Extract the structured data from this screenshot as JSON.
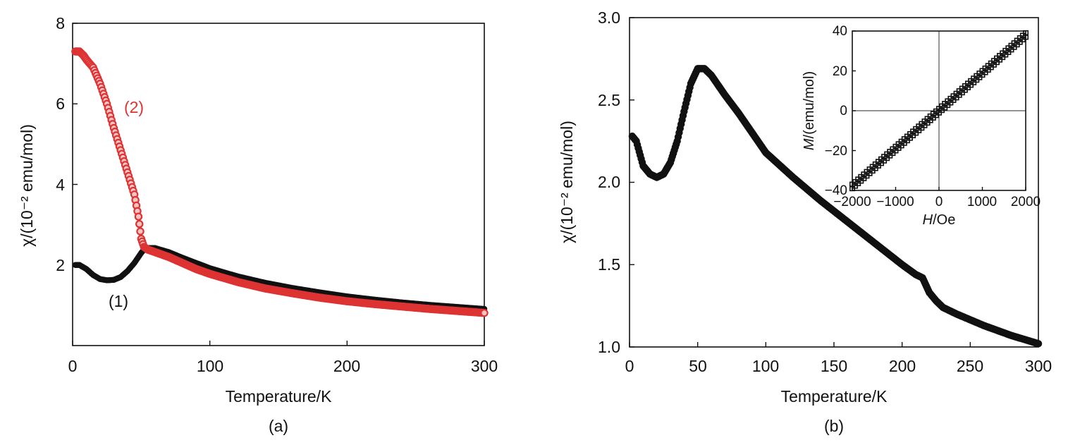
{
  "chart_data": [
    {
      "panel": "(a)",
      "type": "scatter",
      "xlabel": "Temperature/K",
      "ylabel": "χ/(10⁻² emu/mol)",
      "xlim": [
        0,
        300
      ],
      "ylim": [
        0,
        8
      ],
      "xticks": [
        0,
        100,
        200,
        300
      ],
      "yticks": [
        2,
        4,
        6,
        8
      ],
      "grid": false,
      "series": [
        {
          "name": "(1)",
          "color": "#111111",
          "marker": "filled-circle",
          "x": [
            2,
            5,
            10,
            15,
            20,
            25,
            30,
            35,
            40,
            45,
            50,
            52,
            55,
            60,
            70,
            80,
            90,
            100,
            120,
            140,
            160,
            180,
            200,
            220,
            240,
            260,
            280,
            300
          ],
          "y": [
            2.0,
            2.0,
            1.9,
            1.75,
            1.65,
            1.62,
            1.63,
            1.7,
            1.85,
            2.05,
            2.3,
            2.38,
            2.42,
            2.42,
            2.32,
            2.18,
            2.05,
            1.92,
            1.72,
            1.56,
            1.43,
            1.32,
            1.22,
            1.14,
            1.07,
            1.01,
            0.96,
            0.91
          ]
        },
        {
          "name": "(2)",
          "color": "#dd3333",
          "marker": "open-circle",
          "x": [
            2,
            5,
            8,
            10,
            15,
            20,
            25,
            30,
            35,
            40,
            45,
            48,
            50,
            52,
            55,
            60,
            70,
            80,
            90,
            100,
            120,
            140,
            160,
            180,
            200,
            220,
            240,
            260,
            280,
            300
          ],
          "y": [
            7.3,
            7.3,
            7.2,
            7.1,
            6.9,
            6.5,
            6.0,
            5.4,
            4.85,
            4.3,
            3.75,
            3.2,
            2.65,
            2.45,
            2.38,
            2.32,
            2.2,
            2.05,
            1.9,
            1.78,
            1.58,
            1.42,
            1.3,
            1.19,
            1.1,
            1.03,
            0.97,
            0.91,
            0.86,
            0.81
          ]
        }
      ],
      "annotations": [
        {
          "text": "(1)",
          "x": 33,
          "y": 1.05,
          "color": "#111111"
        },
        {
          "text": "(2)",
          "x": 45,
          "y": 5.9,
          "color": "#dd3333"
        }
      ]
    },
    {
      "panel": "(b)",
      "type": "scatter",
      "xlabel": "Temperature/K",
      "ylabel": "χ/(10⁻² emu/mol)",
      "xlim": [
        0,
        300
      ],
      "ylim": [
        1.0,
        3.0
      ],
      "xticks": [
        0,
        50,
        100,
        150,
        200,
        250,
        300
      ],
      "yticks": [
        "1.0",
        "1.5",
        "2.0",
        "2.5",
        "3.0"
      ],
      "grid": false,
      "series": [
        {
          "name": "",
          "color": "#111111",
          "marker": "filled-circle",
          "x": [
            2,
            5,
            10,
            15,
            20,
            25,
            30,
            35,
            40,
            45,
            50,
            55,
            60,
            70,
            80,
            90,
            100,
            120,
            140,
            160,
            180,
            200,
            210,
            215,
            220,
            225,
            230,
            240,
            260,
            280,
            300
          ],
          "y": [
            2.28,
            2.25,
            2.1,
            2.05,
            2.03,
            2.05,
            2.12,
            2.25,
            2.43,
            2.6,
            2.69,
            2.69,
            2.65,
            2.53,
            2.42,
            2.3,
            2.18,
            2.03,
            1.89,
            1.76,
            1.63,
            1.5,
            1.44,
            1.42,
            1.33,
            1.28,
            1.24,
            1.2,
            1.13,
            1.07,
            1.02
          ]
        }
      ],
      "inset": {
        "type": "line",
        "xlabel_italic": "H",
        "xlabel_rest": "/Oe",
        "ylabel_italic": "M",
        "ylabel_rest": "/(emu/mol)",
        "xlim": [
          -2000,
          2000
        ],
        "ylim": [
          -40,
          40
        ],
        "xticks": [
          "−2000",
          "−1000",
          "0",
          "1000",
          "2000"
        ],
        "yticks": [
          "−40",
          "−20",
          "0",
          "20",
          "40"
        ],
        "xtick_values": [
          -2000,
          -1000,
          0,
          1000,
          2000
        ],
        "ytick_values": [
          -40,
          -20,
          0,
          20,
          40
        ],
        "grid": "zero-lines",
        "series": [
          {
            "name": "",
            "color": "#111111",
            "x": [
              -2000,
              2000
            ],
            "y": [
              -37,
              39
            ]
          },
          {
            "name": "",
            "color": "#111111",
            "x": [
              -2000,
              2000
            ],
            "y": [
              -39,
              37
            ]
          }
        ]
      }
    }
  ]
}
